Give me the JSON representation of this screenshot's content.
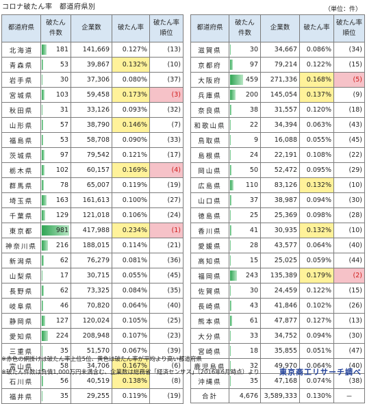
{
  "title": "コロナ破たん率　都道府県別",
  "unit": "（単位：件）",
  "headers": {
    "pref": "都道府県",
    "count_line1": "破たん",
    "count_line2": "件数",
    "companies": "企業数",
    "rate": "破たん率",
    "rank_line1": "破たん率",
    "rank_line2": "順位"
  },
  "colors": {
    "header_bg": "#d8e6f3",
    "yellow": "#fff29a",
    "pink": "#f6c2c8",
    "bar": "#4cbb6c",
    "source_text": "#1f3f99"
  },
  "max_count": 981,
  "left_rows": [
    {
      "pref": "北海道",
      "count": "181",
      "companies": "141,669",
      "rate": "0.127%",
      "rank": "(13)",
      "hl": ""
    },
    {
      "pref": "青森県",
      "count": "53",
      "companies": "39,867",
      "rate": "0.132%",
      "rank": "(10)",
      "hl": "yellow"
    },
    {
      "pref": "岩手県",
      "count": "30",
      "companies": "37,306",
      "rate": "0.080%",
      "rank": "(37)",
      "hl": ""
    },
    {
      "pref": "宮城県",
      "count": "103",
      "companies": "59,458",
      "rate": "0.173%",
      "rank": "(3)",
      "hl": "pink"
    },
    {
      "pref": "秋田県",
      "count": "31",
      "companies": "33,126",
      "rate": "0.093%",
      "rank": "(32)",
      "hl": ""
    },
    {
      "pref": "山形県",
      "count": "57",
      "companies": "38,790",
      "rate": "0.146%",
      "rank": "(7)",
      "hl": "yellow"
    },
    {
      "pref": "福島県",
      "count": "53",
      "companies": "58,708",
      "rate": "0.090%",
      "rank": "(33)",
      "hl": ""
    },
    {
      "pref": "茨城県",
      "count": "97",
      "companies": "79,542",
      "rate": "0.121%",
      "rank": "(17)",
      "hl": ""
    },
    {
      "pref": "栃木県",
      "count": "102",
      "companies": "60,157",
      "rate": "0.169%",
      "rank": "(4)",
      "hl": "pink"
    },
    {
      "pref": "群馬県",
      "count": "78",
      "companies": "65,007",
      "rate": "0.119%",
      "rank": "(19)",
      "hl": ""
    },
    {
      "pref": "埼玉県",
      "count": "163",
      "companies": "161,613",
      "rate": "0.100%",
      "rank": "(27)",
      "hl": ""
    },
    {
      "pref": "千葉県",
      "count": "129",
      "companies": "121,018",
      "rate": "0.106%",
      "rank": "(24)",
      "hl": ""
    },
    {
      "pref": "東京都",
      "count": "981",
      "companies": "417,988",
      "rate": "0.234%",
      "rank": "(1)",
      "hl": "pink"
    },
    {
      "pref": "神奈川県",
      "count": "216",
      "companies": "188,015",
      "rate": "0.114%",
      "rank": "(21)",
      "hl": ""
    },
    {
      "pref": "新潟県",
      "count": "62",
      "companies": "76,279",
      "rate": "0.081%",
      "rank": "(36)",
      "hl": ""
    },
    {
      "pref": "山梨県",
      "count": "17",
      "companies": "30,715",
      "rate": "0.055%",
      "rank": "(45)",
      "hl": ""
    },
    {
      "pref": "長野県",
      "count": "62",
      "companies": "73,325",
      "rate": "0.084%",
      "rank": "(35)",
      "hl": ""
    },
    {
      "pref": "岐阜県",
      "count": "46",
      "companies": "70,820",
      "rate": "0.064%",
      "rank": "(40)",
      "hl": ""
    },
    {
      "pref": "静岡県",
      "count": "127",
      "companies": "120,024",
      "rate": "0.105%",
      "rank": "(25)",
      "hl": ""
    },
    {
      "pref": "愛知県",
      "count": "224",
      "companies": "208,948",
      "rate": "0.107%",
      "rank": "(23)",
      "hl": ""
    },
    {
      "pref": "三重県",
      "count": "35",
      "companies": "51,570",
      "rate": "0.067%",
      "rank": "(39)",
      "hl": ""
    },
    {
      "pref": "富山県",
      "count": "58",
      "companies": "34,706",
      "rate": "0.167%",
      "rank": "(6)",
      "hl": "yellow"
    },
    {
      "pref": "石川県",
      "count": "56",
      "companies": "40,519",
      "rate": "0.138%",
      "rank": "(8)",
      "hl": "yellow"
    },
    {
      "pref": "福井県",
      "count": "35",
      "companies": "29,255",
      "rate": "0.119%",
      "rank": "(19)",
      "hl": ""
    }
  ],
  "right_rows": [
    {
      "pref": "滋賀県",
      "count": "30",
      "companies": "34,667",
      "rate": "0.086%",
      "rank": "(34)",
      "hl": ""
    },
    {
      "pref": "京都府",
      "count": "97",
      "companies": "79,214",
      "rate": "0.122%",
      "rank": "(15)",
      "hl": ""
    },
    {
      "pref": "大阪府",
      "count": "459",
      "companies": "271,336",
      "rate": "0.168%",
      "rank": "(5)",
      "hl": "pink"
    },
    {
      "pref": "兵庫県",
      "count": "200",
      "companies": "145,054",
      "rate": "0.137%",
      "rank": "(9)",
      "hl": "yellow"
    },
    {
      "pref": "奈良県",
      "count": "38",
      "companies": "31,557",
      "rate": "0.120%",
      "rank": "(18)",
      "hl": ""
    },
    {
      "pref": "和歌山県",
      "count": "22",
      "companies": "34,394",
      "rate": "0.063%",
      "rank": "(43)",
      "hl": ""
    },
    {
      "pref": "鳥取県",
      "count": "9",
      "companies": "16,088",
      "rate": "0.055%",
      "rank": "(45)",
      "hl": ""
    },
    {
      "pref": "島根県",
      "count": "24",
      "companies": "22,191",
      "rate": "0.108%",
      "rank": "(22)",
      "hl": ""
    },
    {
      "pref": "岡山県",
      "count": "50",
      "companies": "52,472",
      "rate": "0.095%",
      "rank": "(29)",
      "hl": ""
    },
    {
      "pref": "広島県",
      "count": "110",
      "companies": "83,126",
      "rate": "0.132%",
      "rank": "(10)",
      "hl": "yellow"
    },
    {
      "pref": "山口県",
      "count": "37",
      "companies": "38,987",
      "rate": "0.094%",
      "rank": "(30)",
      "hl": ""
    },
    {
      "pref": "徳島県",
      "count": "25",
      "companies": "25,369",
      "rate": "0.098%",
      "rank": "(28)",
      "hl": ""
    },
    {
      "pref": "香川県",
      "count": "41",
      "companies": "30,935",
      "rate": "0.132%",
      "rank": "(10)",
      "hl": "yellow"
    },
    {
      "pref": "愛媛県",
      "count": "28",
      "companies": "43,577",
      "rate": "0.064%",
      "rank": "(40)",
      "hl": ""
    },
    {
      "pref": "高知県",
      "count": "15",
      "companies": "25,025",
      "rate": "0.059%",
      "rank": "(44)",
      "hl": ""
    },
    {
      "pref": "福岡県",
      "count": "243",
      "companies": "135,389",
      "rate": "0.179%",
      "rank": "(2)",
      "hl": "pink"
    },
    {
      "pref": "佐賀県",
      "count": "30",
      "companies": "24,459",
      "rate": "0.122%",
      "rank": "(15)",
      "hl": ""
    },
    {
      "pref": "長崎県",
      "count": "43",
      "companies": "41,846",
      "rate": "0.102%",
      "rank": "(26)",
      "hl": ""
    },
    {
      "pref": "熊本県",
      "count": "61",
      "companies": "47,877",
      "rate": "0.127%",
      "rank": "(13)",
      "hl": ""
    },
    {
      "pref": "大分県",
      "count": "33",
      "companies": "34,752",
      "rate": "0.094%",
      "rank": "(30)",
      "hl": ""
    },
    {
      "pref": "宮崎県",
      "count": "18",
      "companies": "35,855",
      "rate": "0.051%",
      "rank": "(47)",
      "hl": ""
    },
    {
      "pref": "鹿児島県",
      "count": "32",
      "companies": "49,970",
      "rate": "0.064%",
      "rank": "(40)",
      "hl": ""
    },
    {
      "pref": "沖縄県",
      "count": "35",
      "companies": "47,168",
      "rate": "0.074%",
      "rank": "(38)",
      "hl": ""
    }
  ],
  "total": {
    "label": "合計",
    "count": "4,676",
    "companies": "3,589,333",
    "rate": "0.130%",
    "rank": "－"
  },
  "notes": {
    "note1": "※赤色の網掛けは破たん率上位5位、黄色は破たん率が平均より高い都道府県",
    "note2": "※破たん件数は負債1,000万円未満含む、企業数は総務省「経済センサス」（2016年6月時点）より"
  },
  "source": "東京商工リサーチ調べ"
}
